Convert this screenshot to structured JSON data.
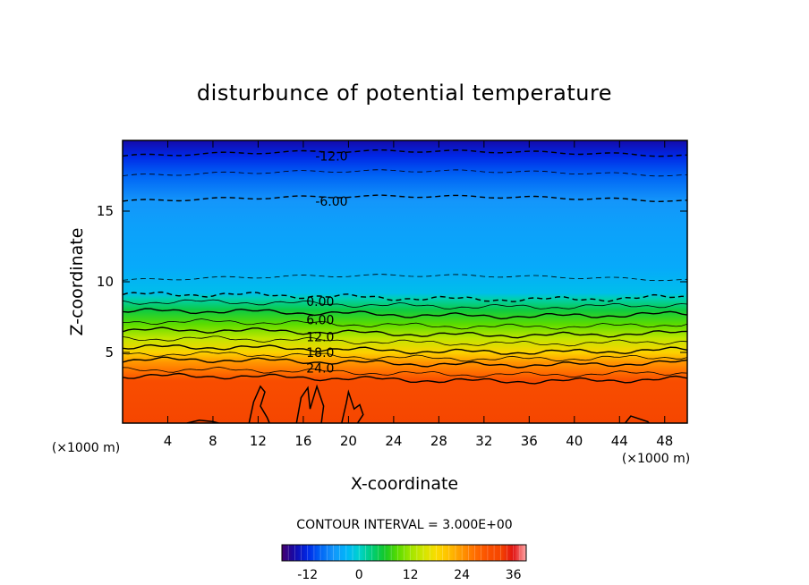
{
  "chart_data": {
    "type": "heatmap",
    "title": "disturbunce of potential temperature",
    "xlabel": "X-coordinate",
    "ylabel": "Z-coordinate",
    "x_unit": "(×1000 m)",
    "xlim": [
      0,
      50
    ],
    "ylim": [
      0,
      20
    ],
    "xticks": [
      4,
      8,
      12,
      16,
      20,
      24,
      28,
      32,
      36,
      40,
      44,
      48
    ],
    "yticks": [
      5,
      10,
      15
    ],
    "contour_interval_label": "CONTOUR INTERVAL = 3.000E+00",
    "contour_interval": 3,
    "field_profile": [
      {
        "z": 0,
        "value": 33
      },
      {
        "z": 3,
        "value": 31
      },
      {
        "z": 3.6,
        "value": 27
      },
      {
        "z": 4.3,
        "value": 24
      },
      {
        "z": 5,
        "value": 19
      },
      {
        "z": 6,
        "value": 14
      },
      {
        "z": 7,
        "value": 9
      },
      {
        "z": 8,
        "value": 5
      },
      {
        "z": 8.8,
        "value": 1
      },
      {
        "z": 9.2,
        "value": -2
      },
      {
        "z": 11,
        "value": -4
      },
      {
        "z": 14,
        "value": -5
      },
      {
        "z": 15.7,
        "value": -6
      },
      {
        "z": 17.5,
        "value": -9
      },
      {
        "z": 18.9,
        "value": -12
      },
      {
        "z": 20,
        "value": -15
      }
    ],
    "contour_labels": [
      {
        "text": "-12.0",
        "x": 18.5,
        "z": 18.9,
        "dashed": true
      },
      {
        "text": "-6.00",
        "x": 18.5,
        "z": 15.7,
        "dashed": true
      },
      {
        "text": "0.00",
        "x": 17.5,
        "z": 8.6,
        "dashed": true
      },
      {
        "text": "6.00",
        "x": 17.5,
        "z": 7.3,
        "dashed": false
      },
      {
        "text": "12.0",
        "x": 17.5,
        "z": 6.1,
        "dashed": false
      },
      {
        "text": "18.0",
        "x": 17.5,
        "z": 5.0,
        "dashed": false
      },
      {
        "text": "24.0",
        "x": 17.5,
        "z": 3.9,
        "dashed": false
      }
    ],
    "colorbar": {
      "range": [
        -18,
        39
      ],
      "tick_labels": [
        "-12",
        "0",
        "12",
        "24",
        "36"
      ],
      "tick_values": [
        -12,
        0,
        12,
        24,
        36
      ]
    }
  }
}
